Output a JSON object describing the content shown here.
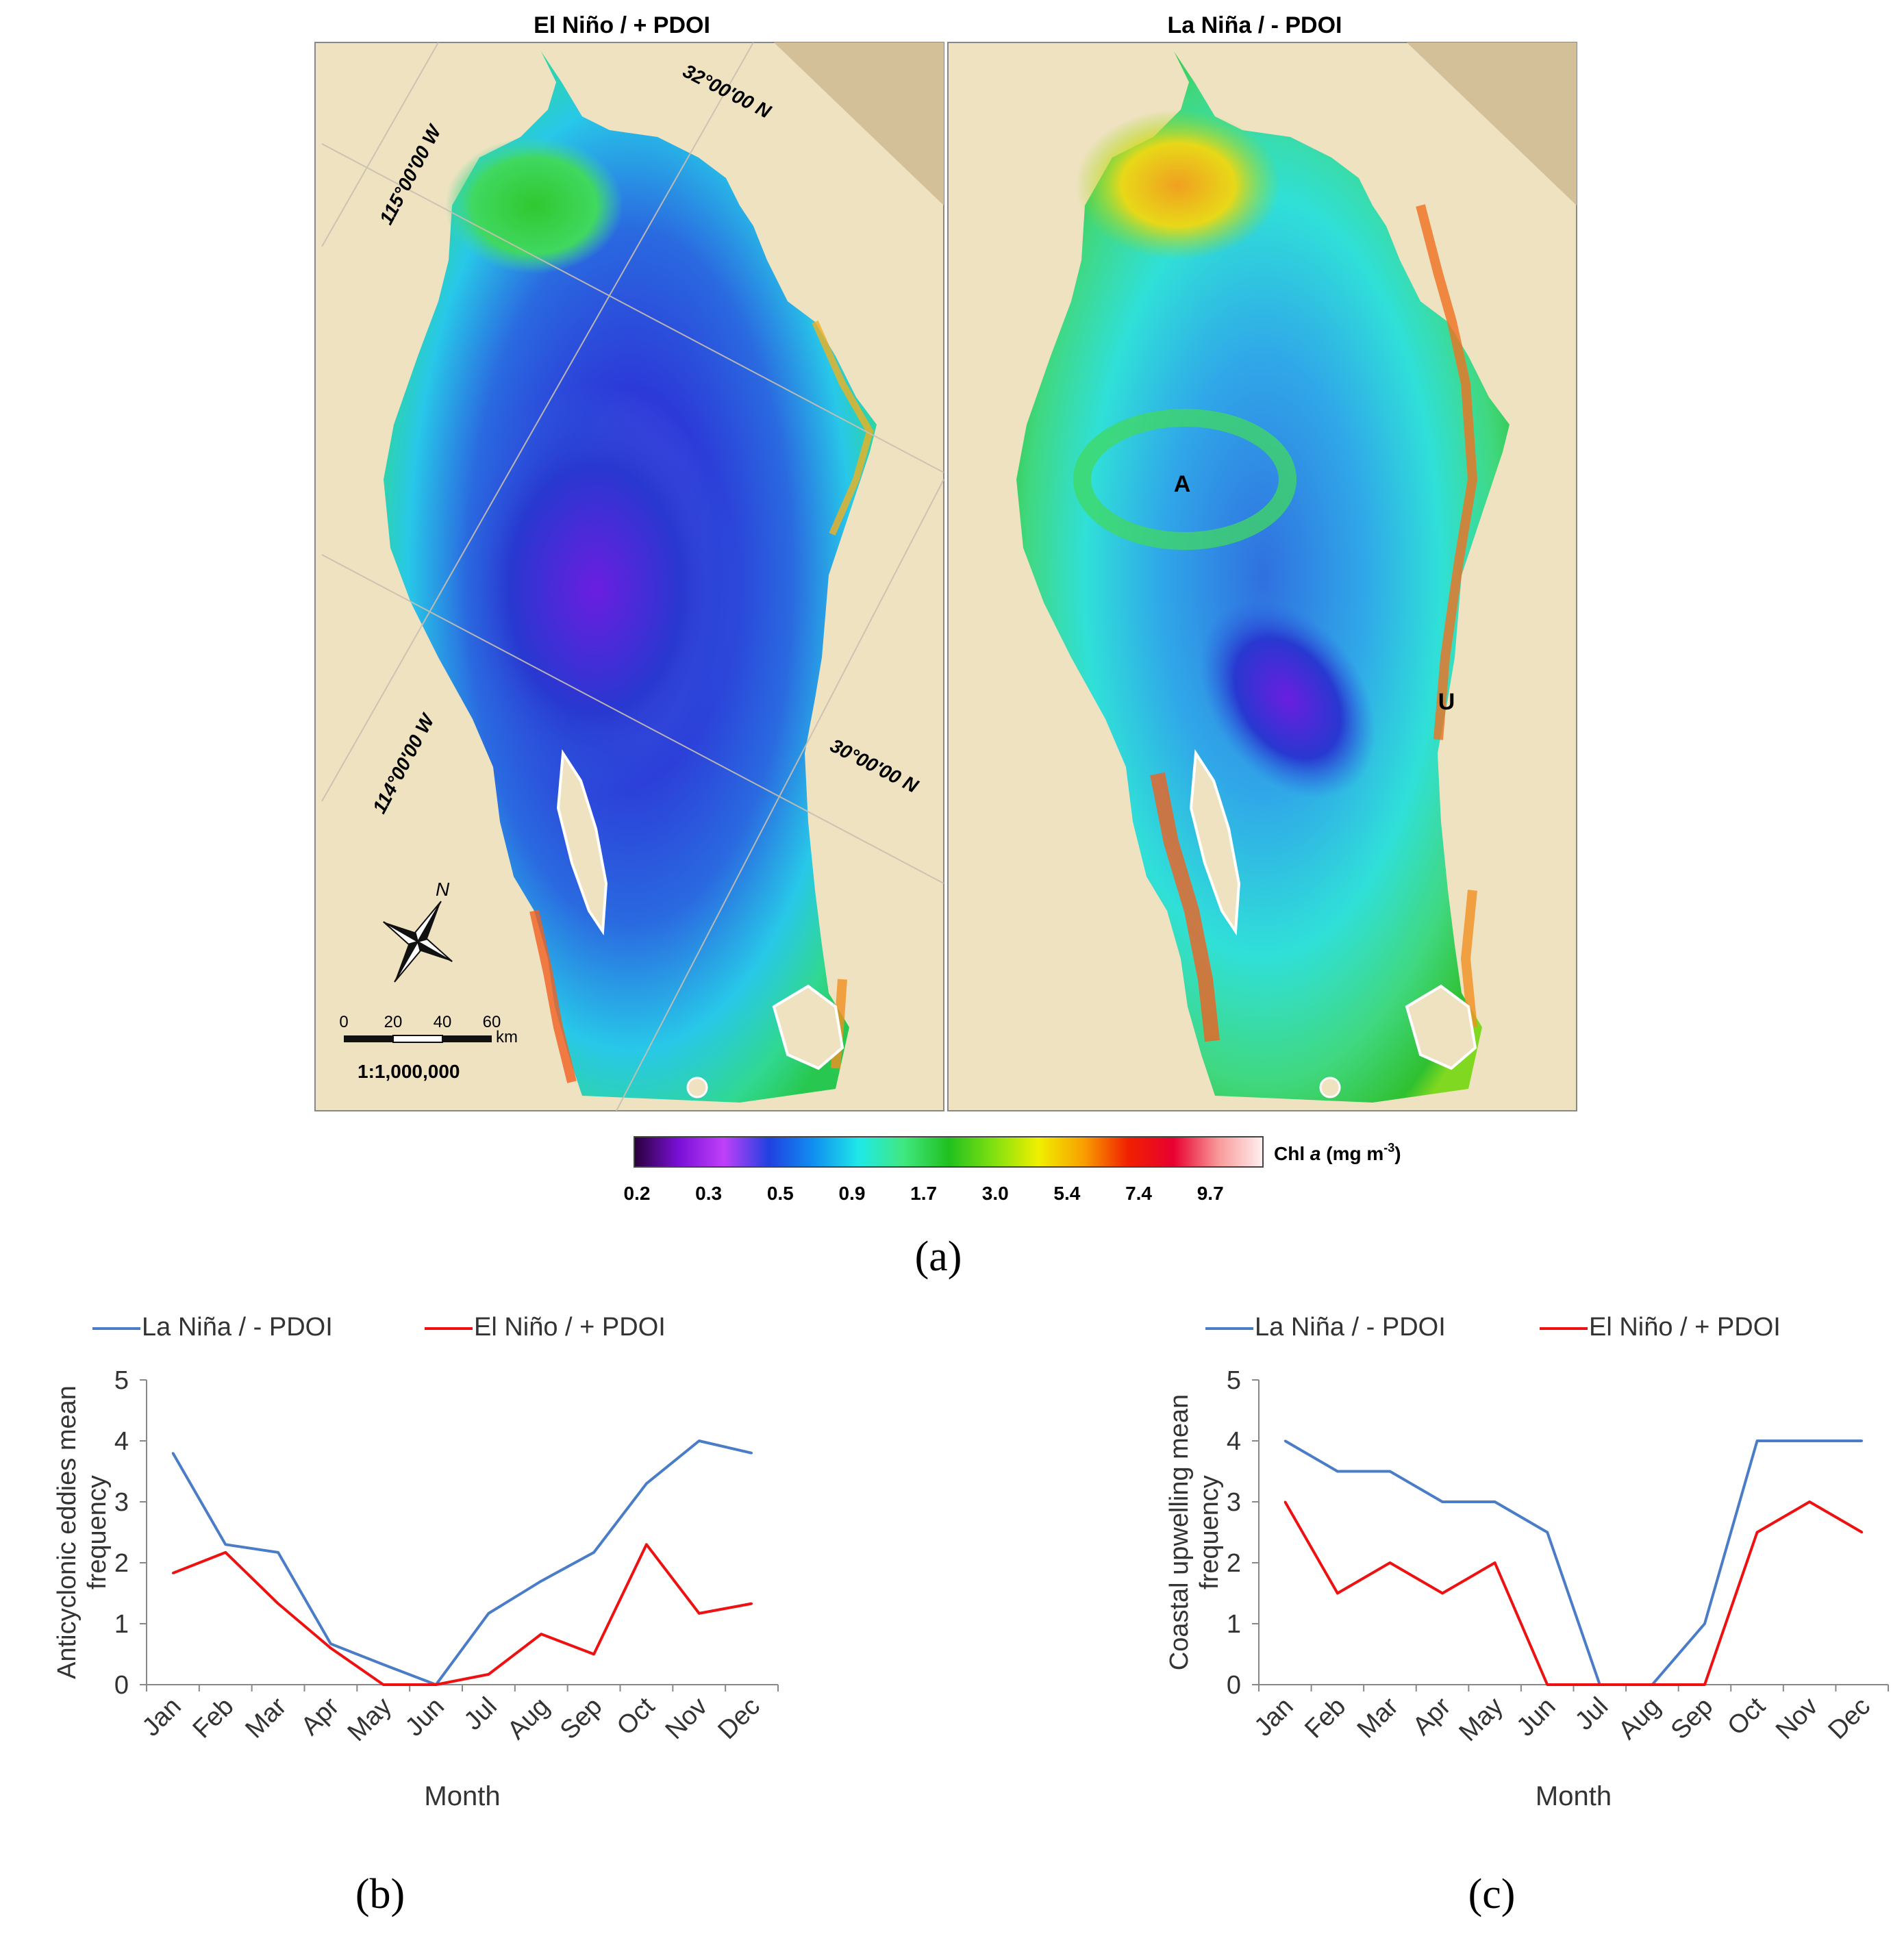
{
  "figure_labels": [
    "(a)",
    "(b)",
    "(c)"
  ],
  "maps": {
    "panels": [
      {
        "title": "El Niño / + PDOI",
        "markers": []
      },
      {
        "title": "La Niña / - PDOI",
        "markers": [
          "A",
          "U"
        ]
      }
    ],
    "graticule_labels": [
      "115°00'00 W",
      "32°00'00 N",
      "114°00'00 W",
      "30°00'00 N"
    ],
    "north_label": "N",
    "scale_bar": {
      "ticks": [
        "0",
        "20",
        "40",
        "60"
      ],
      "unit": "km",
      "ratio": "1:1,000,000"
    },
    "colorbar": {
      "label_prefix": "Chl ",
      "label_italic": "a",
      "label_units": " (mg m",
      "label_exp": "-3",
      "label_suffix": ")",
      "ticks": [
        "0.2",
        "0.3",
        "0.5",
        "0.9",
        "1.7",
        "3.0",
        "5.4",
        "7.4",
        "9.7"
      ],
      "colors": [
        "#2a003a",
        "#7a10d8",
        "#c040f8",
        "#2040e0",
        "#1090f0",
        "#20e8e8",
        "#40e880",
        "#20c020",
        "#80e010",
        "#f0f000",
        "#f8a000",
        "#f02000",
        "#e80030",
        "#f89898",
        "#fff0f0"
      ]
    }
  },
  "colors": {
    "la_nina": "#4a7cc8",
    "el_nino": "#ee1111",
    "land": "#efe2c0",
    "land_dark": "#d3bf98"
  },
  "chart_data": [
    {
      "type": "line",
      "panel": "(b)",
      "title": "",
      "xlabel": "Month",
      "ylabel_lines": [
        "Anticyclonic eddies mean",
        "frequency"
      ],
      "categories": [
        "Jan",
        "Feb",
        "Mar",
        "Apr",
        "May",
        "Jun",
        "Jul",
        "Aug",
        "Sep",
        "Oct",
        "Nov",
        "Dec"
      ],
      "ylim": [
        0,
        5
      ],
      "yticks": [
        "0",
        "1",
        "2",
        "3",
        "4",
        "5"
      ],
      "legend_position": "top",
      "series": [
        {
          "name": "La Niña / - PDOI",
          "color": "#4a7cc8",
          "values": [
            3.8,
            2.3,
            2.17,
            0.67,
            0.33,
            0.0,
            1.17,
            1.7,
            2.17,
            3.3,
            4.0,
            3.8
          ]
        },
        {
          "name": "El Niño / + PDOI",
          "color": "#ee1111",
          "values": [
            1.83,
            2.17,
            1.33,
            0.6,
            0.0,
            0.0,
            0.17,
            0.83,
            0.5,
            2.3,
            1.17,
            1.33
          ]
        }
      ]
    },
    {
      "type": "line",
      "panel": "(c)",
      "title": "",
      "xlabel": "Month",
      "ylabel_lines": [
        "Coastal upwelling mean",
        "frequency"
      ],
      "categories": [
        "Jan",
        "Feb",
        "Mar",
        "Apr",
        "May",
        "Jun",
        "Jul",
        "Aug",
        "Sep",
        "Oct",
        "Nov",
        "Dec"
      ],
      "ylim": [
        0,
        5
      ],
      "yticks": [
        "0",
        "1",
        "2",
        "3",
        "4",
        "5"
      ],
      "legend_position": "top",
      "series": [
        {
          "name": "La Niña / - PDOI",
          "color": "#4a7cc8",
          "values": [
            4.0,
            3.5,
            3.5,
            3.0,
            3.0,
            2.5,
            0.0,
            0.0,
            1.0,
            4.0,
            4.0,
            4.0
          ]
        },
        {
          "name": "El Niño / + PDOI",
          "color": "#ee1111",
          "values": [
            3.0,
            1.5,
            2.0,
            1.5,
            2.0,
            0.0,
            0.0,
            0.0,
            0.0,
            2.5,
            3.0,
            2.5
          ]
        }
      ]
    }
  ]
}
